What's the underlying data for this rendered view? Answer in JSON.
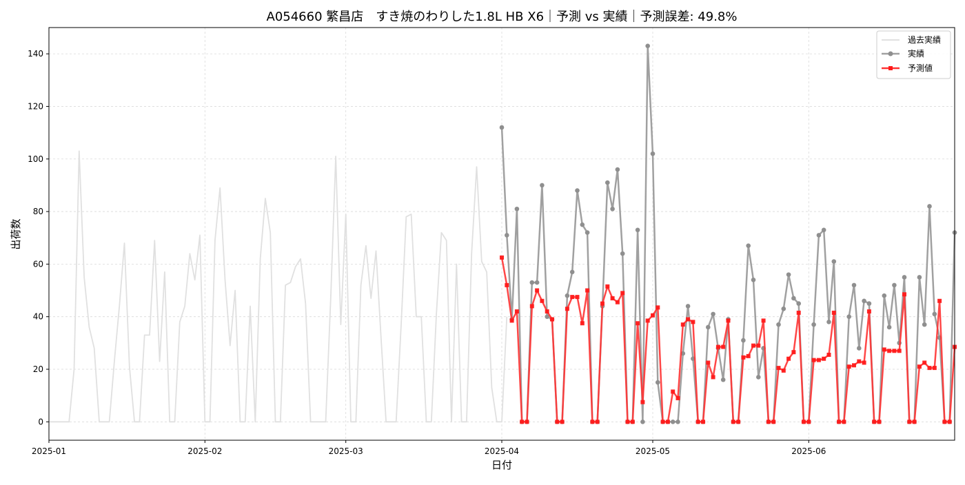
{
  "chart_data": {
    "type": "line",
    "title": "A054660 繁昌店　すき焼のわりした1.8L HB X6｜予測 vs 実績｜予測誤差: 49.8%",
    "xlabel": "日付",
    "ylabel": "出荷数",
    "x_tick_labels": [
      "2025-01",
      "2025-02",
      "2025-03",
      "2025-04",
      "2025-05",
      "2025-06"
    ],
    "x_tick_dates": [
      "2025-01-01",
      "2025-02-01",
      "2025-03-01",
      "2025-04-01",
      "2025-05-01",
      "2025-06-01"
    ],
    "xlim": [
      "2025-01-01",
      "2025-06-30"
    ],
    "ylim": [
      -7,
      150
    ],
    "y_ticks": [
      0,
      20,
      40,
      60,
      80,
      100,
      120,
      140
    ],
    "grid": true,
    "legend_position": "top-right",
    "colors": {
      "history": "#e0e0e0",
      "actual": "#a0a0a0",
      "forecast": "#ff3333"
    },
    "series": [
      {
        "name": "過去実績",
        "start_date": "2025-01-01",
        "values": [
          0,
          0,
          0,
          0,
          0,
          20,
          103,
          55,
          36,
          28,
          0,
          0,
          0,
          23,
          44,
          68,
          21,
          0,
          0,
          33,
          33,
          69,
          23,
          57,
          0,
          0,
          38,
          44,
          64,
          54,
          71,
          0,
          0,
          69,
          89,
          54,
          29,
          50,
          0,
          0,
          44,
          0,
          62,
          85,
          72,
          0,
          0,
          52,
          53,
          59,
          62,
          45,
          0,
          0,
          0,
          0,
          47,
          101,
          37,
          79,
          0,
          0,
          52,
          67,
          47,
          65,
          32,
          0,
          0,
          0,
          37,
          78,
          79,
          40,
          40,
          0,
          0,
          41,
          72,
          69,
          0,
          60,
          0,
          0,
          64,
          97,
          61,
          57,
          13,
          0,
          0,
          40
        ]
      },
      {
        "name": "実績",
        "start_date": "2025-04-01",
        "values": [
          112,
          71,
          39,
          81,
          0,
          0,
          53,
          53,
          90,
          40,
          39,
          0,
          0,
          48,
          57,
          88,
          75,
          72,
          0,
          0,
          44,
          91,
          81,
          96,
          64,
          0,
          0,
          73,
          0,
          143,
          102,
          15,
          0,
          0,
          0,
          0,
          26,
          44,
          24,
          0,
          0,
          36,
          41,
          28,
          16,
          39,
          0,
          0,
          31,
          67,
          54,
          17,
          28,
          0,
          0,
          37,
          43,
          56,
          47,
          45,
          0,
          0,
          37,
          71,
          73,
          38,
          61,
          0,
          0,
          40,
          52,
          28,
          46,
          45,
          0,
          0,
          48,
          36,
          52,
          30,
          55,
          0,
          0,
          55,
          37,
          82,
          41,
          32,
          0,
          0,
          72
        ]
      },
      {
        "name": "予測値",
        "start_date": "2025-04-01",
        "values": [
          62.5,
          52,
          38.5,
          42,
          0,
          0,
          44,
          50,
          46,
          42,
          39,
          0,
          0,
          43,
          47.5,
          47.5,
          37.5,
          50,
          0,
          0,
          45,
          51.5,
          47,
          45.5,
          49,
          0,
          0,
          37.5,
          7.5,
          38.5,
          40.5,
          43.5,
          0,
          0,
          11.5,
          9,
          37,
          39,
          38,
          0,
          0,
          22.5,
          17,
          28.5,
          28.5,
          38.5,
          0,
          0,
          24.5,
          25,
          29,
          29,
          38.5,
          0,
          0,
          20.5,
          19.5,
          24,
          26.5,
          41.5,
          0,
          0,
          23.5,
          23.5,
          24,
          25.5,
          41.5,
          0,
          0,
          21,
          21.5,
          23,
          22.5,
          42,
          0,
          0,
          27.5,
          27,
          27,
          27,
          48.5,
          0,
          0,
          21,
          22.5,
          20.5,
          20.5,
          46,
          0,
          0,
          28.5
        ]
      }
    ]
  }
}
